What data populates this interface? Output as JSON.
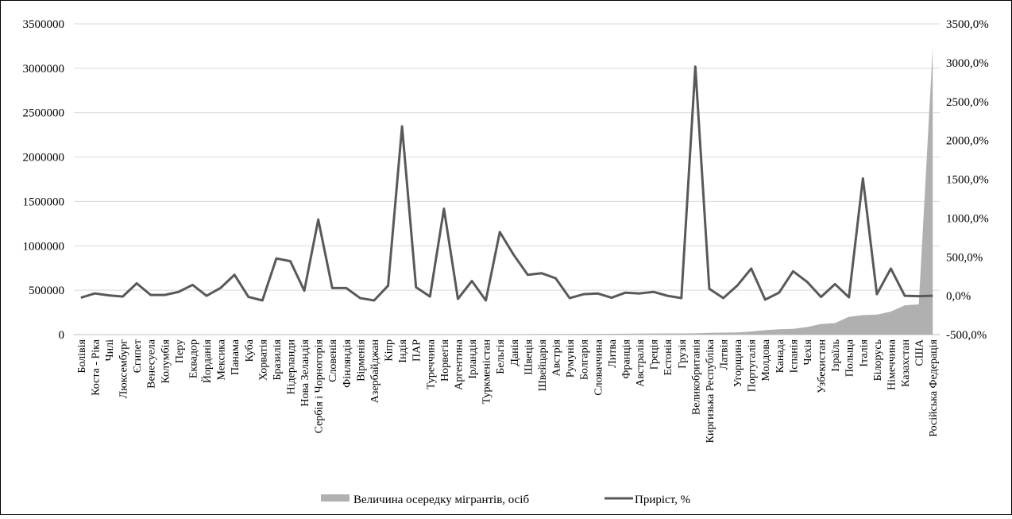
{
  "chart_data": {
    "type": "area",
    "title": "",
    "categories": [
      "Болівія",
      "Коста - Ріка",
      "Чилі",
      "Люксембург",
      "Єгипет",
      "Венесуела",
      "Колумбія",
      "Перу",
      "Еквадор",
      "Йорданія",
      "Мексика",
      "Панама",
      "Куба",
      "Хорватія",
      "Бразилія",
      "Нідерланди",
      "Нова Зеландія",
      "Сербія і Чорногорія",
      "Словенія",
      "Фінляндія",
      "Вірменія",
      "Азербайджан",
      "Кіпр",
      "Індія",
      "ПАР",
      "Туреччина",
      "Норвегія",
      "Аргентина",
      "Ірландія",
      "Туркменістан",
      "Бельгія",
      "Данія",
      "Швеція",
      "Швейцарія",
      "Австрія",
      "Румунія",
      "Болгарія",
      "Словаччина",
      "Литва",
      "Франція",
      "Австралія",
      "Греція",
      "Естонія",
      "Грузія",
      "Великобританія",
      "Киргизька Республіка",
      "Латвія",
      "Угорщина",
      "Португалія",
      "Молдова",
      "Канада",
      "Іспанія",
      "Чехія",
      "Узбекистан",
      "Ізраїль",
      "Польща",
      "Італія",
      "Білорусь",
      "Німеччина",
      "Казахстан",
      "США",
      "Російська Федерація"
    ],
    "series": [
      {
        "name": "Величина осередку мігрантів, осіб",
        "type": "area",
        "axis": "left",
        "color": "#b0b0b0",
        "values": [
          300,
          400,
          500,
          600,
          700,
          800,
          900,
          1000,
          1100,
          1200,
          1300,
          1400,
          1500,
          1600,
          1800,
          2000,
          2200,
          2400,
          2600,
          2800,
          3000,
          3200,
          3400,
          3600,
          3800,
          4000,
          4300,
          4600,
          4900,
          5200,
          5500,
          5800,
          6100,
          6400,
          6700,
          7000,
          7500,
          8000,
          9000,
          10000,
          11000,
          12000,
          13000,
          14000,
          15000,
          20000,
          22000,
          25000,
          35000,
          50000,
          60000,
          65000,
          85000,
          120000,
          130000,
          200000,
          220000,
          225000,
          260000,
          330000,
          340000,
          3230000
        ]
      },
      {
        "name": "Приріст, %",
        "type": "line",
        "axis": "right",
        "color": "#595959",
        "values": [
          -25,
          30,
          5,
          -10,
          160,
          10,
          10,
          50,
          140,
          0,
          100,
          270,
          -15,
          -60,
          480,
          445,
          65,
          980,
          100,
          100,
          -30,
          -60,
          130,
          2180,
          110,
          -10,
          1120,
          -40,
          190,
          -60,
          820,
          525,
          270,
          290,
          225,
          -30,
          20,
          30,
          -25,
          40,
          30,
          50,
          0,
          -30,
          2950,
          90,
          -30,
          130,
          350,
          -50,
          40,
          315,
          180,
          -15,
          150,
          -20,
          1510,
          20,
          350,
          0,
          -5,
          0
        ]
      }
    ],
    "y_left": {
      "min": 0,
      "max": 3500000,
      "ticks": [
        "0",
        "500000",
        "1000000",
        "1500000",
        "2000000",
        "2500000",
        "3000000",
        "3500000"
      ]
    },
    "y_right": {
      "min": -500,
      "max": 3500,
      "ticks": [
        "-500,0%",
        "0,0%",
        "500,0%",
        "1000,0%",
        "1500,0%",
        "2000,0%",
        "2500,0%",
        "3000,0%",
        "3500,0%"
      ]
    },
    "grid": true,
    "legend_position": "bottom"
  }
}
